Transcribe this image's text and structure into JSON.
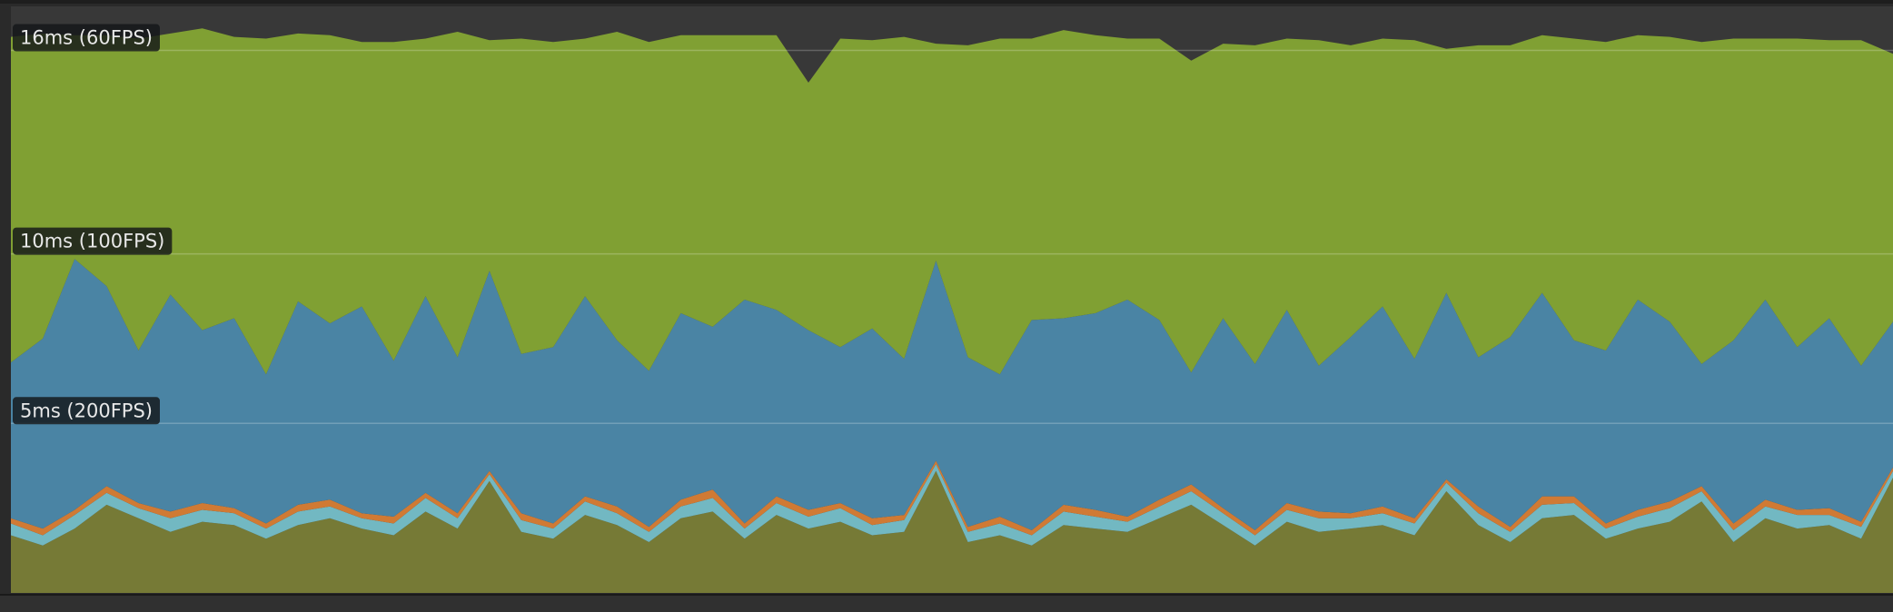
{
  "chart_data": {
    "type": "area",
    "stacked": true,
    "grid": true,
    "ylim": [
      0,
      17.3
    ],
    "yticks": [
      {
        "value": 5,
        "label": "5ms (200FPS)"
      },
      {
        "value": 10,
        "label": "10ms (100FPS)"
      },
      {
        "value": 16,
        "label": "16ms (60FPS)"
      }
    ],
    "series": [
      {
        "color": "#767a36",
        "values": [
          1.7,
          1.4,
          1.9,
          2.6,
          2.2,
          1.8,
          2.1,
          2.0,
          1.6,
          2.0,
          2.2,
          1.9,
          1.7,
          2.4,
          1.9,
          3.3,
          1.8,
          1.6,
          2.3,
          2.0,
          1.5,
          2.2,
          2.4,
          1.6,
          2.3,
          1.9,
          2.1,
          1.7,
          1.8,
          3.6,
          1.5,
          1.7,
          1.4,
          2.0,
          1.9,
          1.8,
          2.2,
          2.6,
          2.0,
          1.4,
          2.1,
          1.8,
          1.9,
          2.0,
          1.7,
          3.0,
          2.0,
          1.5,
          2.2,
          2.3,
          1.6,
          1.9,
          2.1,
          2.7,
          1.5,
          2.2,
          1.9,
          2.0,
          1.6,
          3.4
        ]
      },
      {
        "color": "#72b8c2",
        "values": [
          0.35,
          0.3,
          0.4,
          0.35,
          0.3,
          0.4,
          0.35,
          0.35,
          0.3,
          0.4,
          0.35,
          0.3,
          0.35,
          0.4,
          0.3,
          0.2,
          0.35,
          0.3,
          0.4,
          0.35,
          0.3,
          0.35,
          0.4,
          0.3,
          0.35,
          0.35,
          0.4,
          0.3,
          0.35,
          0.2,
          0.3,
          0.35,
          0.3,
          0.4,
          0.35,
          0.3,
          0.35,
          0.4,
          0.35,
          0.3,
          0.35,
          0.4,
          0.3,
          0.35,
          0.35,
          0.25,
          0.35,
          0.3,
          0.4,
          0.35,
          0.3,
          0.35,
          0.4,
          0.3,
          0.35,
          0.35,
          0.4,
          0.3,
          0.35,
          0.2
        ]
      },
      {
        "color": "#d07a34",
        "values": [
          0.15,
          0.2,
          0.15,
          0.2,
          0.15,
          0.2,
          0.2,
          0.15,
          0.15,
          0.2,
          0.2,
          0.15,
          0.2,
          0.15,
          0.15,
          0.1,
          0.2,
          0.15,
          0.15,
          0.2,
          0.15,
          0.2,
          0.25,
          0.15,
          0.2,
          0.2,
          0.15,
          0.2,
          0.15,
          0.1,
          0.15,
          0.2,
          0.15,
          0.2,
          0.2,
          0.15,
          0.2,
          0.2,
          0.15,
          0.15,
          0.2,
          0.2,
          0.15,
          0.2,
          0.15,
          0.1,
          0.2,
          0.15,
          0.25,
          0.2,
          0.15,
          0.2,
          0.2,
          0.15,
          0.2,
          0.2,
          0.15,
          0.2,
          0.15,
          0.1
        ]
      },
      {
        "color": "#4a84a4",
        "values": [
          4.6,
          5.6,
          7.4,
          5.9,
          4.5,
          6.4,
          5.1,
          5.6,
          4.4,
          6.0,
          5.2,
          6.1,
          4.6,
          5.8,
          4.6,
          5.9,
          4.7,
          5.2,
          5.9,
          4.9,
          4.6,
          5.5,
          4.8,
          6.6,
          5.5,
          5.3,
          4.6,
          5.6,
          4.6,
          5.9,
          5.0,
          4.2,
          6.2,
          5.5,
          5.8,
          6.4,
          5.3,
          3.3,
          5.6,
          4.9,
          5.7,
          4.3,
          5.2,
          5.9,
          4.7,
          5.5,
          4.4,
          5.6,
          6.0,
          4.6,
          5.1,
          6.2,
          5.3,
          3.6,
          5.4,
          5.9,
          4.8,
          5.6,
          4.6,
          4.3
        ]
      },
      {
        "color": "#80a033",
        "values": [
          9.6,
          9.0,
          6.6,
          7.4,
          9.2,
          7.7,
          8.9,
          8.3,
          9.9,
          7.9,
          8.5,
          7.8,
          9.4,
          7.6,
          9.6,
          6.8,
          9.3,
          9.0,
          7.6,
          9.1,
          9.7,
          8.2,
          8.6,
          7.8,
          8.1,
          7.3,
          9.1,
          8.5,
          9.5,
          6.4,
          9.2,
          9.9,
          8.3,
          8.5,
          8.2,
          7.7,
          8.3,
          9.2,
          8.1,
          9.4,
          8.0,
          9.6,
          8.6,
          7.9,
          9.4,
          7.2,
          9.2,
          8.6,
          7.6,
          8.9,
          9.1,
          7.8,
          8.4,
          9.5,
          8.9,
          7.7,
          9.1,
          8.2,
          9.6,
          7.9
        ]
      }
    ]
  }
}
